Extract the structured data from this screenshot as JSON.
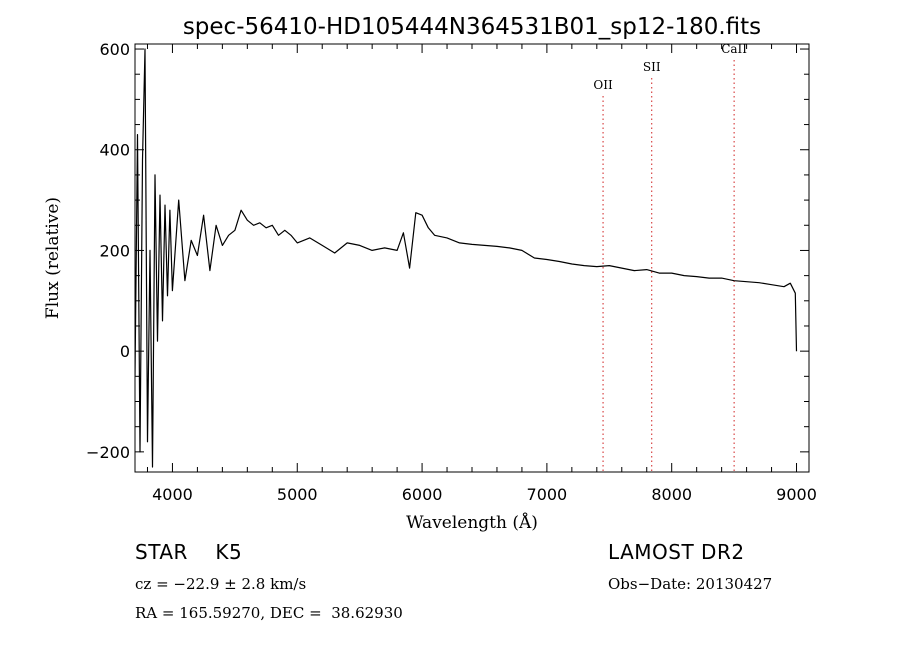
{
  "chart_data": {
    "type": "line",
    "title": "spec-56410-HD105444N364531B01_sp12-180.fits",
    "xlabel": "Wavelength (Å)",
    "ylabel": "Flux (relative)",
    "xlim": [
      3700,
      9100
    ],
    "ylim": [
      -240,
      610
    ],
    "x_ticks": [
      4000,
      5000,
      6000,
      7000,
      8000,
      9000
    ],
    "y_ticks": [
      -200,
      0,
      200,
      400,
      600
    ],
    "x_tick_labels": [
      "4000",
      "5000",
      "6000",
      "7000",
      "8000",
      "9000"
    ],
    "y_tick_labels": [
      "−200",
      "0",
      "200",
      "400",
      "600"
    ],
    "grid": false,
    "series": [
      {
        "x": [
          3700,
          3720,
          3740,
          3760,
          3780,
          3800,
          3820,
          3840,
          3860,
          3880,
          3900,
          3920,
          3940,
          3960,
          3980,
          4000,
          4050,
          4100,
          4150,
          4200,
          4250,
          4300,
          4350,
          4400,
          4450,
          4500,
          4550,
          4600,
          4650,
          4700,
          4750,
          4800,
          4850,
          4900,
          4950,
          5000,
          5100,
          5200,
          5300,
          5400,
          5500,
          5600,
          5700,
          5800,
          5850,
          5900,
          5950,
          6000,
          6050,
          6100,
          6200,
          6300,
          6400,
          6500,
          6600,
          6700,
          6800,
          6900,
          7000,
          7100,
          7200,
          7300,
          7400,
          7500,
          7600,
          7700,
          7800,
          7900,
          8000,
          8100,
          8200,
          8300,
          8400,
          8500,
          8600,
          8700,
          8800,
          8900,
          8950,
          8990,
          9000
        ],
        "y": [
          -50,
          430,
          -200,
          380,
          600,
          -180,
          200,
          -230,
          350,
          20,
          310,
          60,
          290,
          110,
          280,
          120,
          300,
          140,
          220,
          190,
          270,
          160,
          250,
          210,
          230,
          240,
          280,
          260,
          250,
          255,
          245,
          250,
          230,
          240,
          230,
          215,
          225,
          210,
          195,
          215,
          210,
          200,
          205,
          200,
          235,
          165,
          275,
          270,
          245,
          230,
          225,
          215,
          212,
          210,
          208,
          205,
          200,
          185,
          182,
          178,
          173,
          170,
          168,
          170,
          165,
          160,
          162,
          155,
          155,
          150,
          148,
          145,
          145,
          140,
          138,
          136,
          132,
          128,
          135,
          115,
          0
        ]
      }
    ],
    "lines": [
      {
        "label": "OII",
        "x": 7450
      },
      {
        "label": "SII",
        "x": 7840
      },
      {
        "label": "CaII",
        "x": 8500
      }
    ]
  },
  "info": {
    "class_line": "STAR    K5",
    "survey": "LAMOST DR2",
    "cz": "cz = −22.9 ± 2.8 km/s",
    "obs_date": "Obs−Date: 20130427",
    "coords": "RA = 165.59270, DEC =  38.62930"
  }
}
